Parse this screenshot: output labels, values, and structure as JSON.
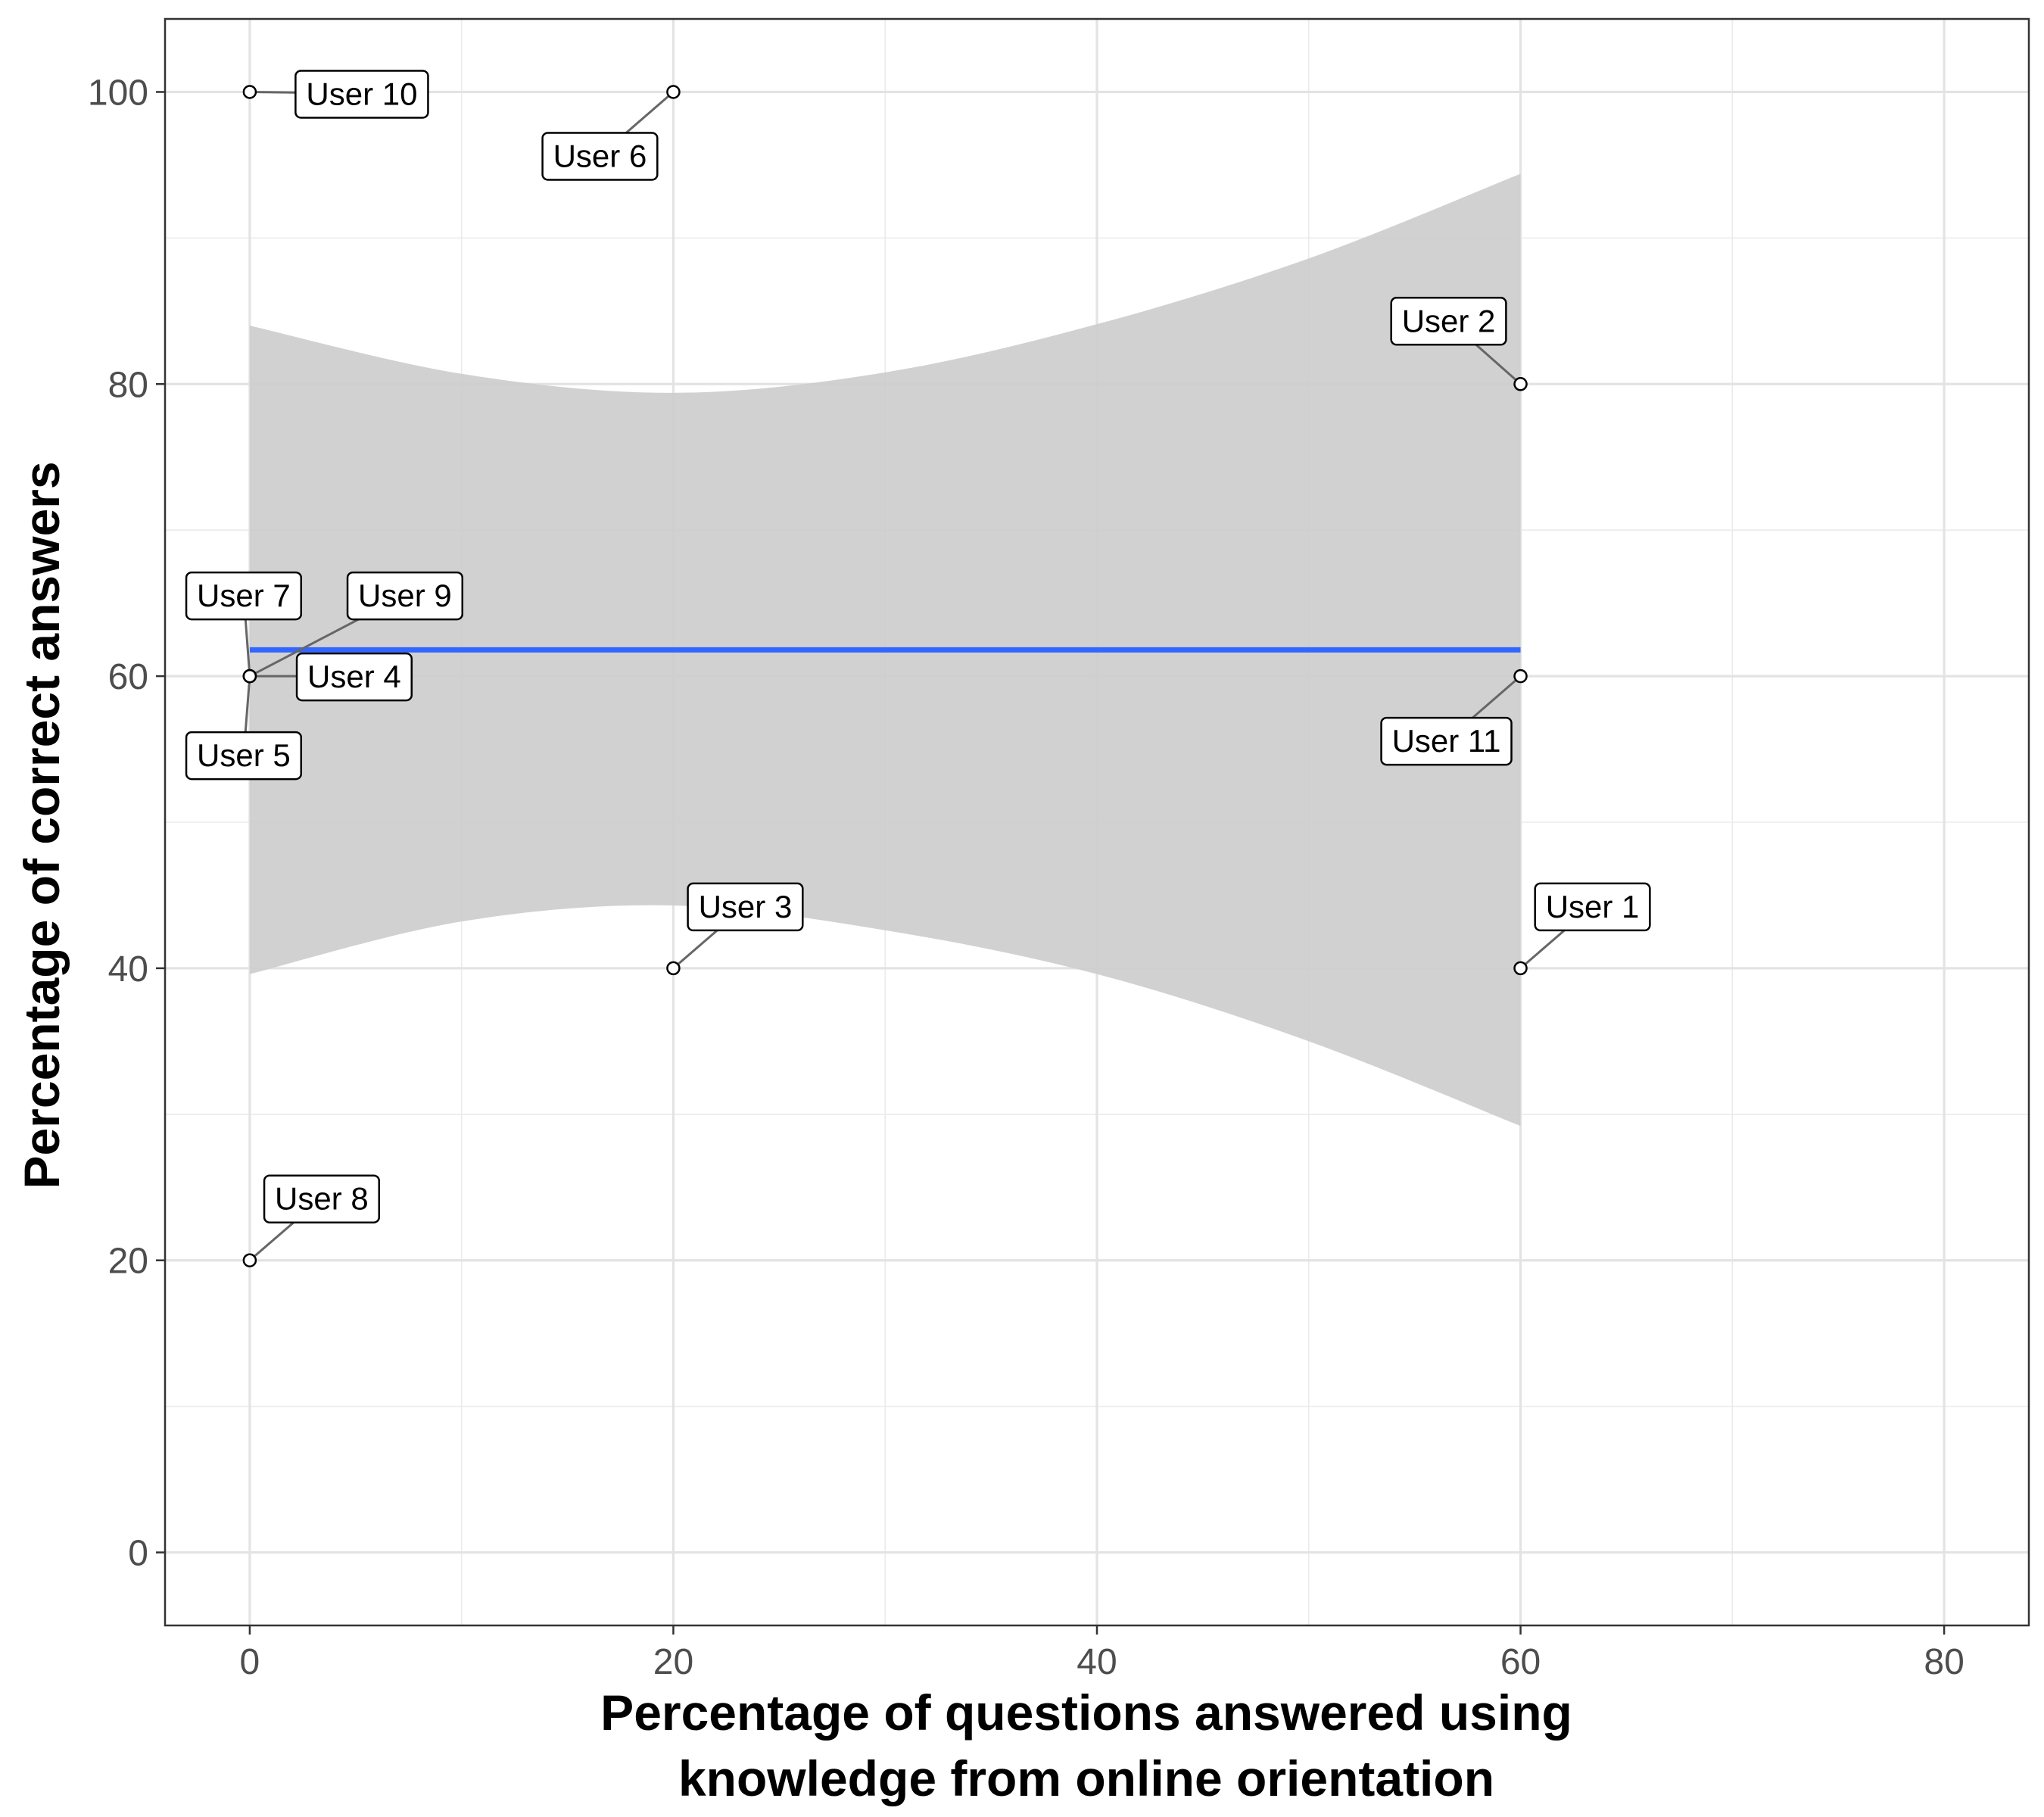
{
  "chart_data": {
    "type": "scatter",
    "title": "",
    "xlabel_lines": [
      "Percentage of questions answered using",
      "knowledge from online orientation"
    ],
    "ylabel": "Percentage of correct answers",
    "xlim": [
      -4,
      84
    ],
    "ylim": [
      -5,
      105
    ],
    "x_ticks": [
      0,
      20,
      40,
      60,
      80
    ],
    "y_ticks": [
      0,
      20,
      40,
      60,
      80,
      100
    ],
    "x_tick_labels": [
      "0",
      "20",
      "40",
      "60",
      "80"
    ],
    "y_tick_labels": [
      "0",
      "20",
      "40",
      "60",
      "80",
      "100"
    ],
    "grid": true,
    "points": [
      {
        "label": "User 1",
        "x": 60,
        "y": 40
      },
      {
        "label": "User 2",
        "x": 60,
        "y": 80
      },
      {
        "label": "User 3",
        "x": 20,
        "y": 40
      },
      {
        "label": "User 4",
        "x": 0,
        "y": 60
      },
      {
        "label": "User 5",
        "x": 0,
        "y": 60
      },
      {
        "label": "User 6",
        "x": 20,
        "y": 100
      },
      {
        "label": "User 7",
        "x": 0,
        "y": 60
      },
      {
        "label": "User 8",
        "x": 0,
        "y": 20
      },
      {
        "label": "User 9",
        "x": 0,
        "y": 60
      },
      {
        "label": "User 10",
        "x": 0,
        "y": 100
      },
      {
        "label": "User 11",
        "x": 60,
        "y": 60
      }
    ],
    "fit": {
      "method": "lm",
      "x_range": [
        0,
        60
      ],
      "y": 61.8,
      "color": "#3366ff",
      "confidence_band": {
        "x": [
          0,
          10,
          20,
          30,
          40,
          50,
          60
        ],
        "lower": [
          39.6,
          43.2,
          44.3,
          42.6,
          39.6,
          35.0,
          29.2
        ],
        "upper": [
          84.0,
          80.7,
          79.4,
          80.8,
          84.1,
          88.6,
          94.4
        ],
        "fill": "#cccccc"
      }
    }
  }
}
